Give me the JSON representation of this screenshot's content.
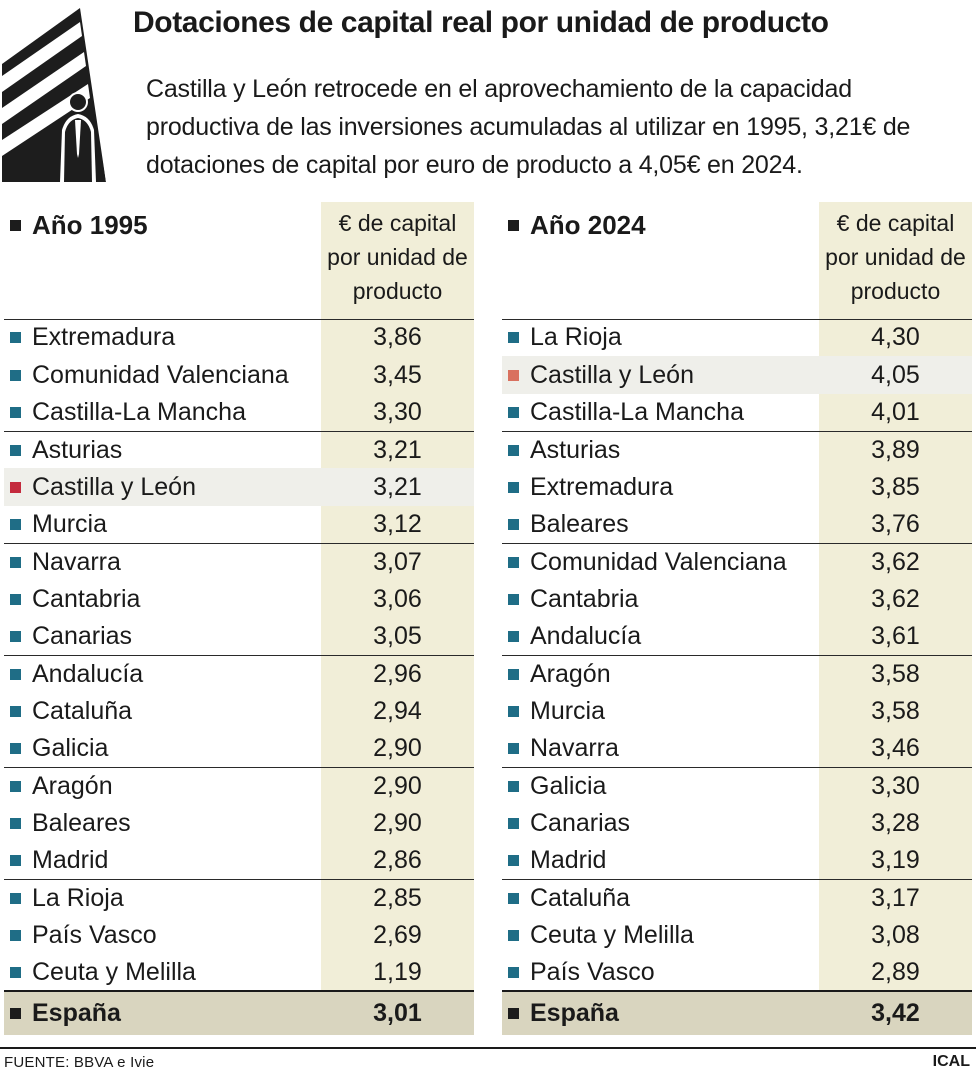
{
  "title": "Dotaciones de capital real por unidad de producto",
  "subtitle": "Castilla y León retrocede en el aprovechamiento de la capacidad productiva de las inversiones acumuladas al utilizar en 1995, 3,21€ de dotaciones de capital por euro de producto a 4,05€ en 2024.",
  "colors": {
    "accent_teal": "#1f6d86",
    "highlight_1995": "#c42a3d",
    "highlight_2024": "#d9715f",
    "value_column_bg": "#f1eed8",
    "total_bg": "#d9d5bf"
  },
  "chart_data": [
    {
      "type": "table",
      "title": "Año 1995",
      "column_header": "€ de capital por unidad de producto",
      "highlight": "Castilla y León",
      "rows": [
        {
          "name": "Extremadura",
          "value": "3,86"
        },
        {
          "name": "Comunidad Valenciana",
          "value": "3,45"
        },
        {
          "name": "Castilla-La Mancha",
          "value": "3,30"
        },
        {
          "name": "Asturias",
          "value": "3,21"
        },
        {
          "name": "Castilla y León",
          "value": "3,21"
        },
        {
          "name": "Murcia",
          "value": "3,12"
        },
        {
          "name": "Navarra",
          "value": "3,07"
        },
        {
          "name": "Cantabria",
          "value": "3,06"
        },
        {
          "name": "Canarias",
          "value": "3,05"
        },
        {
          "name": "Andalucía",
          "value": "2,96"
        },
        {
          "name": "Cataluña",
          "value": "2,94"
        },
        {
          "name": "Galicia",
          "value": "2,90"
        },
        {
          "name": "Aragón",
          "value": "2,90"
        },
        {
          "name": "Baleares",
          "value": "2,90"
        },
        {
          "name": "Madrid",
          "value": "2,86"
        },
        {
          "name": "La Rioja",
          "value": "2,85"
        },
        {
          "name": "País Vasco",
          "value": "2,69"
        },
        {
          "name": "Ceuta y Melilla",
          "value": "1,19"
        }
      ],
      "total": {
        "name": "España",
        "value": "3,01"
      }
    },
    {
      "type": "table",
      "title": "Año 2024",
      "column_header": "€ de capital por unidad de producto",
      "highlight": "Castilla y León",
      "rows": [
        {
          "name": "La Rioja",
          "value": "4,30"
        },
        {
          "name": "Castilla y León",
          "value": "4,05"
        },
        {
          "name": "Castilla-La Mancha",
          "value": "4,01"
        },
        {
          "name": "Asturias",
          "value": "3,89"
        },
        {
          "name": "Extremadura",
          "value": "3,85"
        },
        {
          "name": "Baleares",
          "value": "3,76"
        },
        {
          "name": "Comunidad Valenciana",
          "value": "3,62"
        },
        {
          "name": "Cantabria",
          "value": "3,62"
        },
        {
          "name": "Andalucía",
          "value": "3,61"
        },
        {
          "name": "Aragón",
          "value": "3,58"
        },
        {
          "name": "Murcia",
          "value": "3,58"
        },
        {
          "name": "Navarra",
          "value": "3,46"
        },
        {
          "name": "Galicia",
          "value": "3,30"
        },
        {
          "name": "Canarias",
          "value": "3,28"
        },
        {
          "name": "Madrid",
          "value": "3,19"
        },
        {
          "name": "Cataluña",
          "value": "3,17"
        },
        {
          "name": "Ceuta y Melilla",
          "value": "3,08"
        },
        {
          "name": "País Vasco",
          "value": "2,89"
        }
      ],
      "total": {
        "name": "España",
        "value": "3,42"
      }
    }
  ],
  "footer": {
    "source": "FUENTE: BBVA e Ivie",
    "credit": "ICAL"
  }
}
